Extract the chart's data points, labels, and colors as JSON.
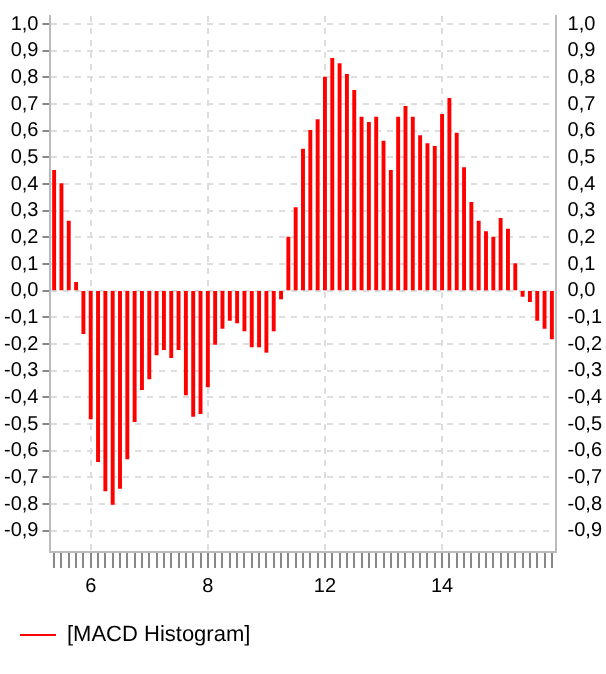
{
  "chart_data": {
    "type": "bar",
    "categories": [
      null,
      null,
      null,
      null,
      null,
      "6",
      null,
      null,
      null,
      null,
      null,
      null,
      null,
      null,
      null,
      null,
      null,
      null,
      null,
      null,
      null,
      "8",
      null,
      null,
      null,
      null,
      null,
      null,
      null,
      null,
      null,
      null,
      null,
      null,
      null,
      null,
      null,
      "12",
      null,
      null,
      null,
      null,
      null,
      null,
      null,
      null,
      null,
      null,
      null,
      null,
      null,
      null,
      null,
      "14",
      null,
      null,
      null,
      null,
      null,
      null,
      null,
      null,
      null,
      null,
      null,
      null,
      null,
      null,
      null
    ],
    "series": [
      {
        "name": "[MACD Histogram]",
        "color": "#ff0000",
        "values": [
          0.45,
          0.4,
          0.26,
          0.03,
          -0.16,
          -0.48,
          -0.64,
          -0.75,
          -0.8,
          -0.74,
          -0.63,
          -0.49,
          -0.37,
          -0.33,
          -0.24,
          -0.22,
          -0.25,
          -0.22,
          -0.39,
          -0.47,
          -0.46,
          -0.36,
          -0.2,
          -0.14,
          -0.11,
          -0.12,
          -0.15,
          -0.21,
          -0.21,
          -0.23,
          -0.15,
          -0.03,
          0.2,
          0.31,
          0.53,
          0.6,
          0.64,
          0.8,
          0.87,
          0.85,
          0.81,
          0.75,
          0.65,
          0.63,
          0.65,
          0.56,
          0.45,
          0.65,
          0.69,
          0.65,
          0.58,
          0.55,
          0.54,
          0.66,
          0.72,
          0.59,
          0.46,
          0.33,
          0.26,
          0.22,
          0.2,
          0.27,
          0.23,
          0.1,
          -0.02,
          -0.04,
          -0.11,
          -0.14,
          -0.18
        ]
      }
    ],
    "ylim": [
      -0.98,
      1.03
    ],
    "yticks": [
      {
        "value": -0.9,
        "label": "-0,9"
      },
      {
        "value": -0.8,
        "label": "-0,8"
      },
      {
        "value": -0.7,
        "label": "-0,7"
      },
      {
        "value": -0.6,
        "label": "-0,6"
      },
      {
        "value": -0.5,
        "label": "-0,5"
      },
      {
        "value": -0.4,
        "label": "-0,4"
      },
      {
        "value": -0.3,
        "label": "-0,3"
      },
      {
        "value": -0.2,
        "label": "-0,2"
      },
      {
        "value": -0.1,
        "label": "-0,1"
      },
      {
        "value": 0,
        "label": "0,0"
      },
      {
        "value": 0.1,
        "label": "0,1"
      },
      {
        "value": 0.2,
        "label": "0,2"
      },
      {
        "value": 0.3,
        "label": "0,3"
      },
      {
        "value": 0.4,
        "label": "0,4"
      },
      {
        "value": 0.5,
        "label": "0,5"
      },
      {
        "value": 0.6,
        "label": "0,6"
      },
      {
        "value": 0.7,
        "label": "0,7"
      },
      {
        "value": 0.8,
        "label": "0,8"
      },
      {
        "value": 0.9,
        "label": "0,9"
      },
      {
        "value": 1,
        "label": "1,0"
      }
    ],
    "y2lim": [
      -0.98,
      1.03
    ],
    "y2ticks": [
      {
        "value": -0.9,
        "label": "-0,9"
      },
      {
        "value": -0.8,
        "label": "-0,8"
      },
      {
        "value": -0.7,
        "label": "-0,7"
      },
      {
        "value": -0.6,
        "label": "-0,6"
      },
      {
        "value": -0.5,
        "label": "-0,5"
      },
      {
        "value": -0.4,
        "label": "-0,4"
      },
      {
        "value": -0.3,
        "label": "-0,3"
      },
      {
        "value": -0.2,
        "label": "-0,2"
      },
      {
        "value": -0.1,
        "label": "-0,1"
      },
      {
        "value": 0,
        "label": "0,0"
      },
      {
        "value": 0.1,
        "label": "0,1"
      },
      {
        "value": 0.2,
        "label": "0,2"
      },
      {
        "value": 0.3,
        "label": "0,3"
      },
      {
        "value": 0.4,
        "label": "0,4"
      },
      {
        "value": 0.5,
        "label": "0,5"
      },
      {
        "value": 0.6,
        "label": "0,6"
      },
      {
        "value": 0.7,
        "label": "0,7"
      },
      {
        "value": 0.8,
        "label": "0,8"
      },
      {
        "value": 0.9,
        "label": "0,9"
      },
      {
        "value": 1,
        "label": "1,0"
      }
    ],
    "grid": true,
    "legend": "bottom"
  }
}
